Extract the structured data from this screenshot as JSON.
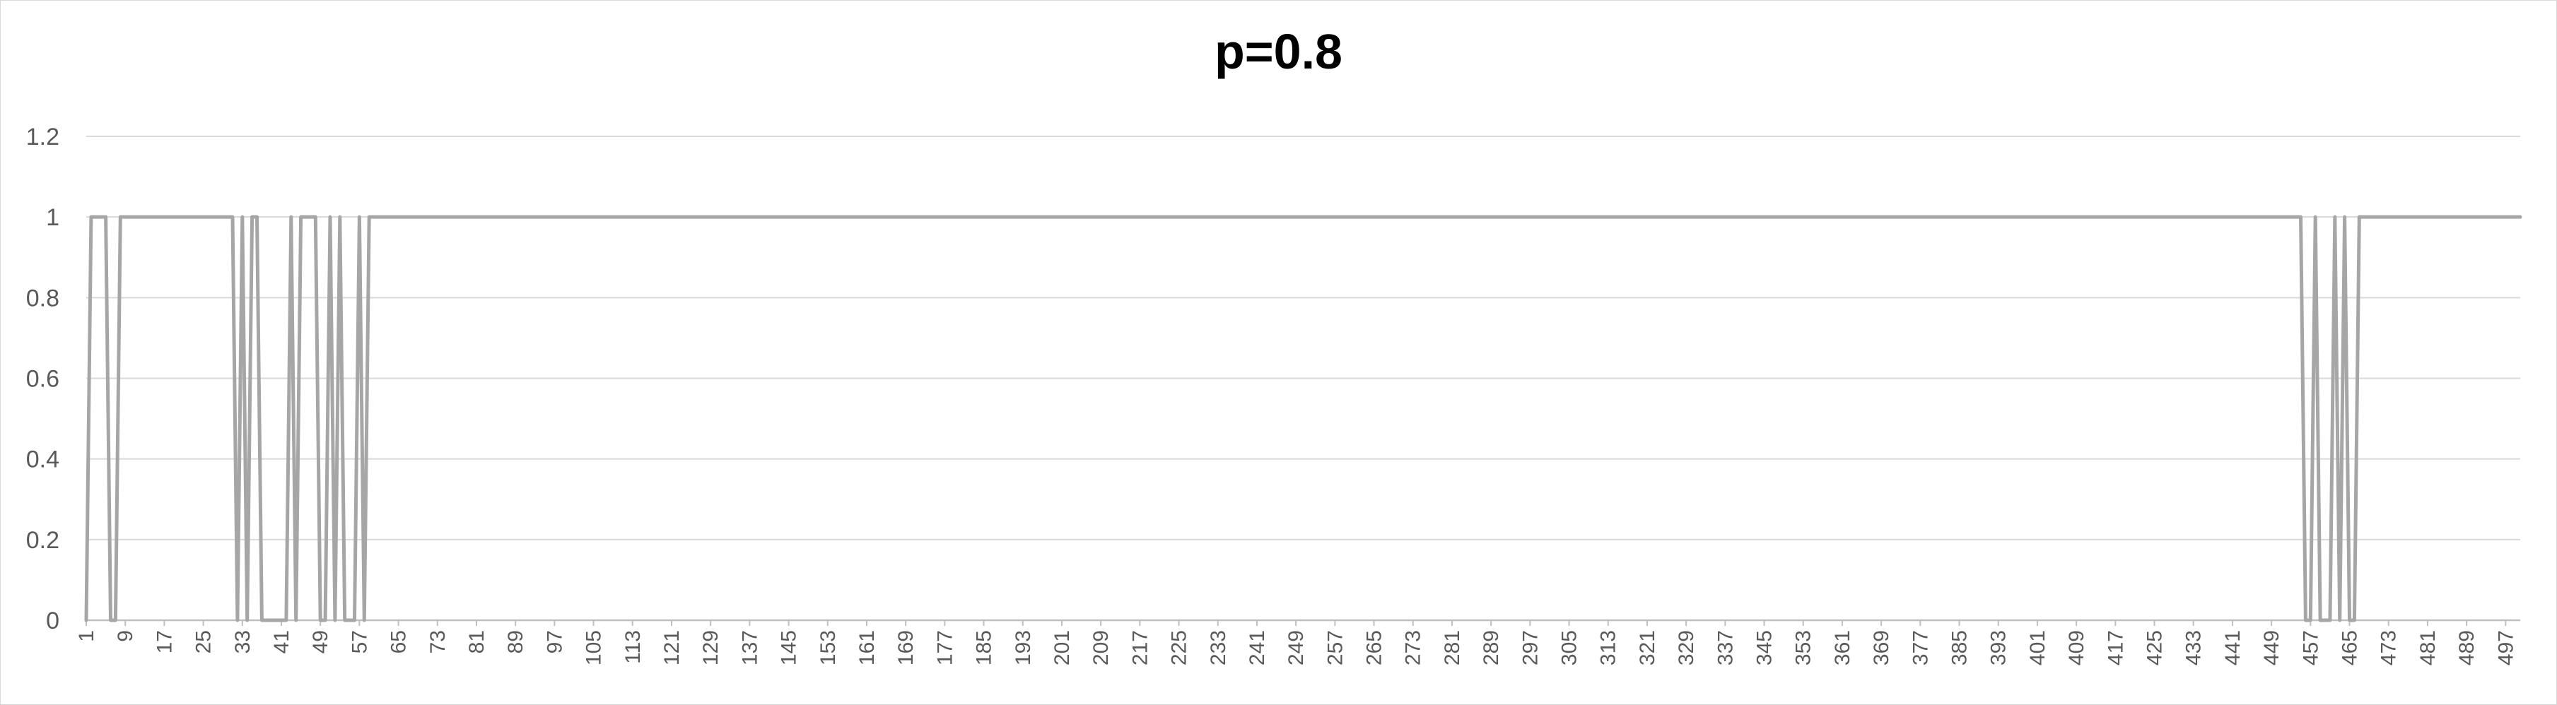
{
  "chart_data": {
    "type": "line",
    "title": "p=0.8",
    "xlabel": "",
    "ylabel": "",
    "x_range": [
      1,
      500
    ],
    "ylim": [
      0,
      1.2
    ],
    "y_ticks": [
      0,
      0.2,
      0.4,
      0.6,
      0.8,
      1,
      1.2
    ],
    "y_tick_labels": [
      "0",
      "0.2",
      "0.4",
      "0.6",
      "0.8",
      "1",
      "1.2"
    ],
    "x_tick_labels": [
      1,
      9,
      17,
      25,
      33,
      41,
      49,
      57,
      65,
      73,
      81,
      89,
      97,
      105,
      113,
      121,
      129,
      137,
      145,
      153,
      161,
      169,
      177,
      185,
      193,
      201,
      209,
      217,
      225,
      233,
      241,
      249,
      257,
      265,
      273,
      281,
      289,
      297,
      305,
      313,
      321,
      329,
      337,
      345,
      353,
      361,
      369,
      377,
      385,
      393,
      401,
      409,
      417,
      425,
      433,
      441,
      449,
      457,
      465,
      473,
      481,
      489,
      497
    ],
    "grid": true,
    "legend": "none",
    "series": [
      {
        "color": "#a6a6a6",
        "points": [
          [
            1,
            0
          ],
          [
            2,
            1
          ],
          [
            5,
            1
          ],
          [
            6,
            0
          ],
          [
            7,
            0
          ],
          [
            8,
            1
          ],
          [
            31,
            1
          ],
          [
            32,
            0
          ],
          [
            33,
            1
          ],
          [
            34,
            0
          ],
          [
            35,
            1
          ],
          [
            36,
            1
          ],
          [
            37,
            0
          ],
          [
            42,
            0
          ],
          [
            43,
            1
          ],
          [
            44,
            0
          ],
          [
            45,
            1
          ],
          [
            48,
            1
          ],
          [
            49,
            0
          ],
          [
            50,
            0
          ],
          [
            51,
            1
          ],
          [
            52,
            0
          ],
          [
            53,
            1
          ],
          [
            54,
            0
          ],
          [
            56,
            0
          ],
          [
            57,
            1
          ],
          [
            58,
            0
          ],
          [
            59,
            1
          ],
          [
            455,
            1
          ],
          [
            456,
            0
          ],
          [
            457,
            0
          ],
          [
            458,
            1
          ],
          [
            459,
            0
          ],
          [
            461,
            0
          ],
          [
            462,
            1
          ],
          [
            463,
            0
          ],
          [
            464,
            1
          ],
          [
            465,
            0
          ],
          [
            466,
            0
          ],
          [
            467,
            1
          ],
          [
            500,
            1
          ]
        ]
      }
    ]
  }
}
